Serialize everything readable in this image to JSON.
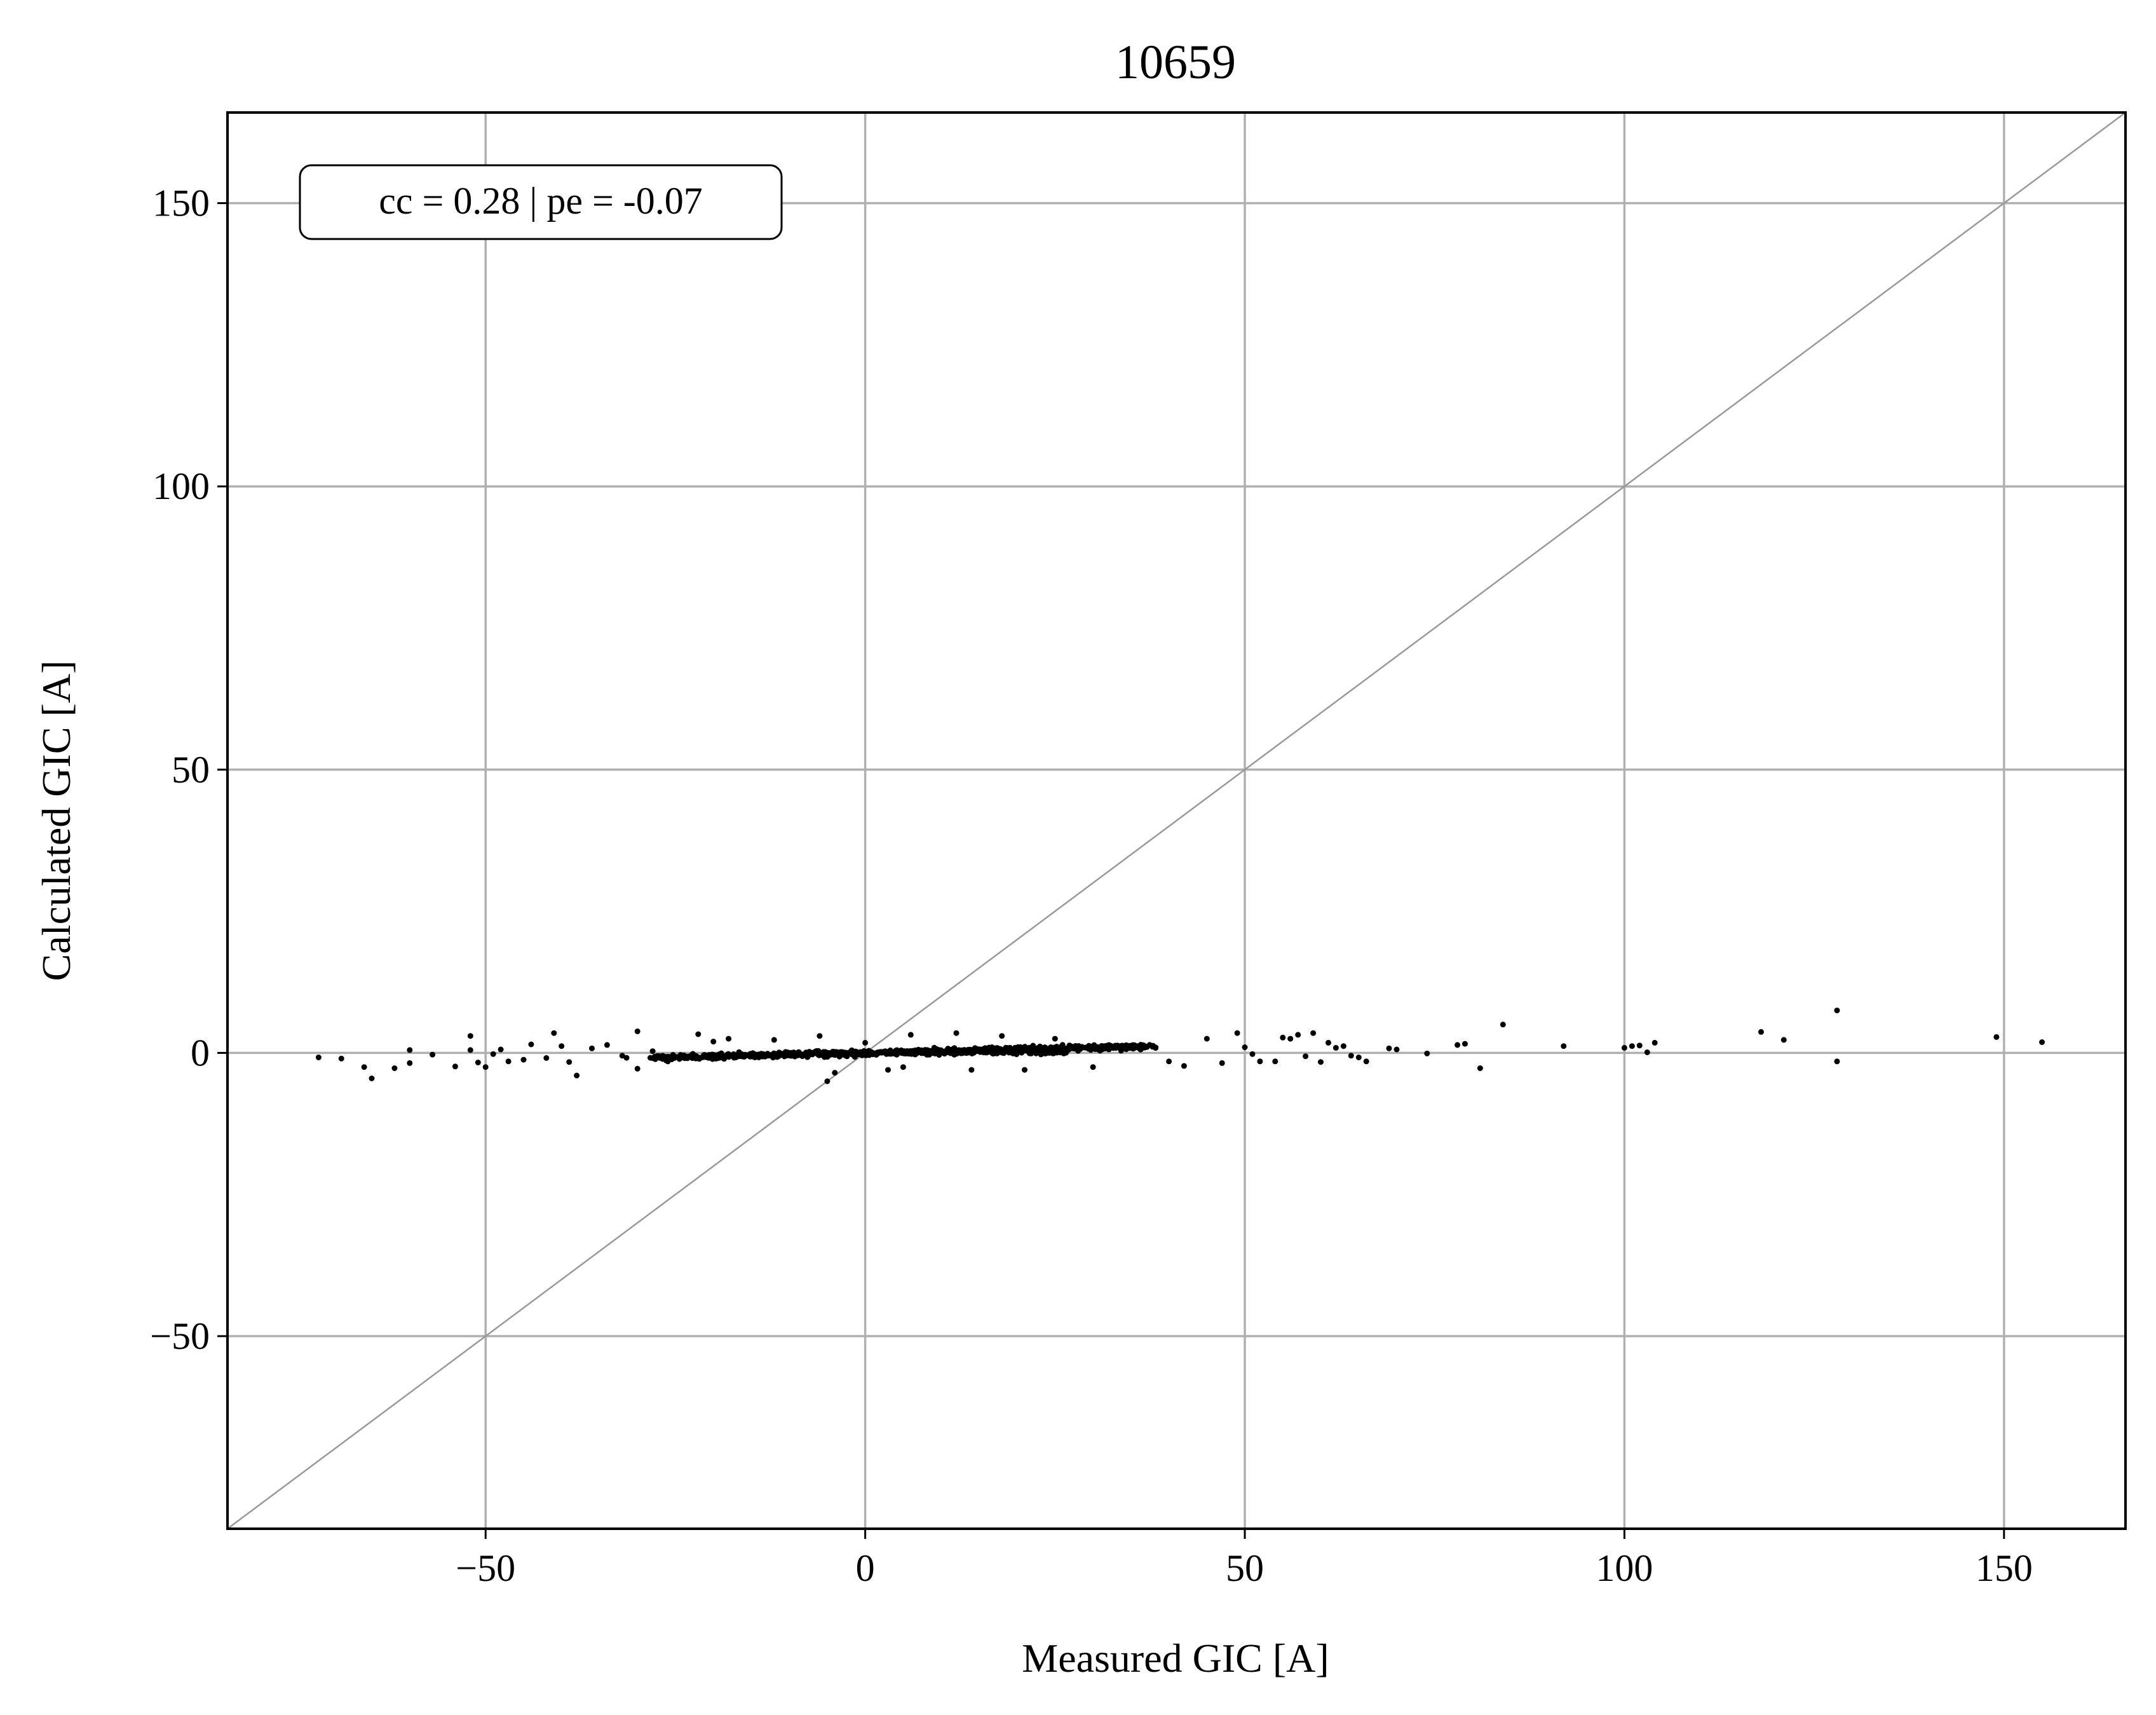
{
  "chart_data": {
    "type": "scatter",
    "title": "10659",
    "xlabel": "Measured GIC [A]",
    "ylabel": "Calculated GIC [A]",
    "xlim": [
      -84,
      166
    ],
    "ylim": [
      -84,
      166
    ],
    "xticks": [
      -50,
      0,
      50,
      100,
      150
    ],
    "yticks": [
      -50,
      0,
      50,
      100,
      150
    ],
    "xtick_labels": [
      "−50",
      "0",
      "50",
      "100",
      "150"
    ],
    "ytick_labels": [
      "−50",
      "0",
      "50",
      "100",
      "150"
    ],
    "grid": true,
    "reference_line": "y = x",
    "annotation": "cc = 0.28 | pe = -0.07",
    "colors": {
      "points": "#000000",
      "grid": "#b0b0b0",
      "reference_line": "#999999"
    },
    "series": [
      {
        "outliers": [
          [
            -72,
            -0.8
          ],
          [
            -69,
            -1
          ],
          [
            -66,
            -2.5
          ],
          [
            -65,
            -4.5
          ],
          [
            -62,
            -2.7
          ],
          [
            -60,
            0.5
          ],
          [
            -60,
            -1.8
          ],
          [
            -57,
            -0.3
          ],
          [
            -54,
            -2.4
          ],
          [
            -52,
            3
          ],
          [
            -52,
            0.5
          ],
          [
            -51,
            -1.7
          ],
          [
            -50,
            -2.5
          ],
          [
            -49,
            -0.2
          ],
          [
            -48,
            0.6
          ],
          [
            -47,
            -1.5
          ],
          [
            -45,
            -1.2
          ],
          [
            -44,
            1.5
          ],
          [
            -42,
            -0.9
          ],
          [
            -41,
            3.5
          ],
          [
            -40,
            1.2
          ],
          [
            -39,
            -1.6
          ],
          [
            -38,
            -4
          ],
          [
            -36,
            0.8
          ],
          [
            -34,
            1.4
          ],
          [
            -32,
            -0.5
          ],
          [
            -30,
            3.8
          ],
          [
            -30,
            -2.8
          ],
          [
            -28,
            0.3
          ],
          [
            -26,
            -1.5
          ],
          [
            -22,
            3.3
          ],
          [
            -20,
            2
          ],
          [
            -18,
            2.5
          ],
          [
            -12,
            2.3
          ],
          [
            -6,
            3
          ],
          [
            -5,
            -5
          ],
          [
            -4,
            -3.5
          ],
          [
            0,
            1.8
          ],
          [
            3,
            -3
          ],
          [
            5,
            -2.5
          ],
          [
            6,
            3.2
          ],
          [
            12,
            3.5
          ],
          [
            14,
            -3
          ],
          [
            18,
            3
          ],
          [
            21,
            -3
          ],
          [
            25,
            2.5
          ],
          [
            30,
            -2.5
          ],
          [
            40,
            -1.5
          ],
          [
            42,
            -2.3
          ],
          [
            45,
            2.5
          ],
          [
            47,
            -1.8
          ],
          [
            49,
            3.5
          ],
          [
            50,
            1
          ],
          [
            51,
            -0.2
          ],
          [
            52,
            -1.5
          ],
          [
            54,
            -1.5
          ],
          [
            55,
            2.7
          ],
          [
            56,
            2.5
          ],
          [
            57,
            3.2
          ],
          [
            58,
            -0.6
          ],
          [
            59,
            3.5
          ],
          [
            60,
            -1.6
          ],
          [
            61,
            1.8
          ],
          [
            62,
            0.9
          ],
          [
            63,
            1.2
          ],
          [
            64,
            -0.5
          ],
          [
            65,
            -0.8
          ],
          [
            66,
            -1.5
          ],
          [
            69,
            0.8
          ],
          [
            70,
            0.6
          ],
          [
            74,
            -0.1
          ],
          [
            78,
            1.4
          ],
          [
            79,
            1.6
          ],
          [
            81,
            -2.7
          ],
          [
            84,
            5
          ],
          [
            92,
            1.2
          ],
          [
            100,
            0.9
          ],
          [
            101,
            1.2
          ],
          [
            102,
            1.3
          ],
          [
            103,
            0.1
          ],
          [
            104,
            1.8
          ],
          [
            118,
            3.7
          ],
          [
            121,
            2.3
          ],
          [
            128,
            7.5
          ],
          [
            128,
            -1.5
          ],
          [
            149,
            2.8
          ],
          [
            155,
            1.9
          ]
        ]
      }
    ]
  }
}
